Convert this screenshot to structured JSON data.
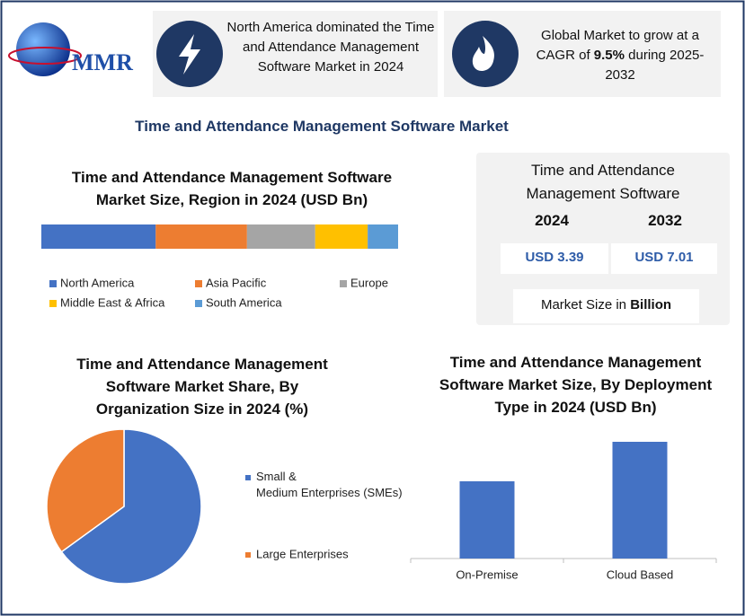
{
  "logo": {
    "text": "MMR"
  },
  "header": {
    "note1": "North America dominated the Time and Attendance Management Software Market in 2024",
    "note2": {
      "before": "Global Market to grow at a CAGR of",
      "highlight": "9.5%",
      "after": "during 2025-2032"
    }
  },
  "title": "Time and Attendance Management Software Market",
  "stats": {
    "title": "Time and Attendance Management Software",
    "years": [
      "2024",
      "2032"
    ],
    "values": [
      "USD 3.39",
      "USD 7.01"
    ],
    "note": {
      "text": "Market Size in",
      "highlight": "Billion"
    }
  },
  "chart_data": [
    {
      "type": "stacked_bar",
      "title": "Time and Attendance Management Software Market Size, Region in 2024 (USD Bn)",
      "series": [
        {
          "name": "North America",
          "color": "#4472c4",
          "values": [
            1.09
          ]
        },
        {
          "name": "Asia Pacific",
          "color": "#ed7d31",
          "values": [
            0.87
          ]
        },
        {
          "name": "Europe",
          "color": "#a5a5a5",
          "values": [
            0.65
          ]
        },
        {
          "name": "Middle East & Africa",
          "color": "#ffc000",
          "values": [
            0.5
          ]
        },
        {
          "name": "South America",
          "color": "#5b9bd5",
          "values": [
            0.29
          ]
        }
      ]
    },
    {
      "type": "pie",
      "title": "Time and Attendance Management Software Market Share, By Organization Size in 2024 (%)",
      "categories": [
        "Small & Medium Enterprises (SMEs)",
        "Large Enterprises"
      ],
      "values": [
        65,
        35
      ],
      "colors": [
        "#4472c4",
        "#ed7d31"
      ]
    },
    {
      "type": "bar",
      "title": "Time and Attendance Management Software Market Size, By  Deployment Type in 2024 (USD Bn)",
      "categories": [
        "On-Premise",
        "Cloud Based"
      ],
      "values": [
        1.35,
        2.04
      ],
      "color": "#4472c4"
    }
  ]
}
